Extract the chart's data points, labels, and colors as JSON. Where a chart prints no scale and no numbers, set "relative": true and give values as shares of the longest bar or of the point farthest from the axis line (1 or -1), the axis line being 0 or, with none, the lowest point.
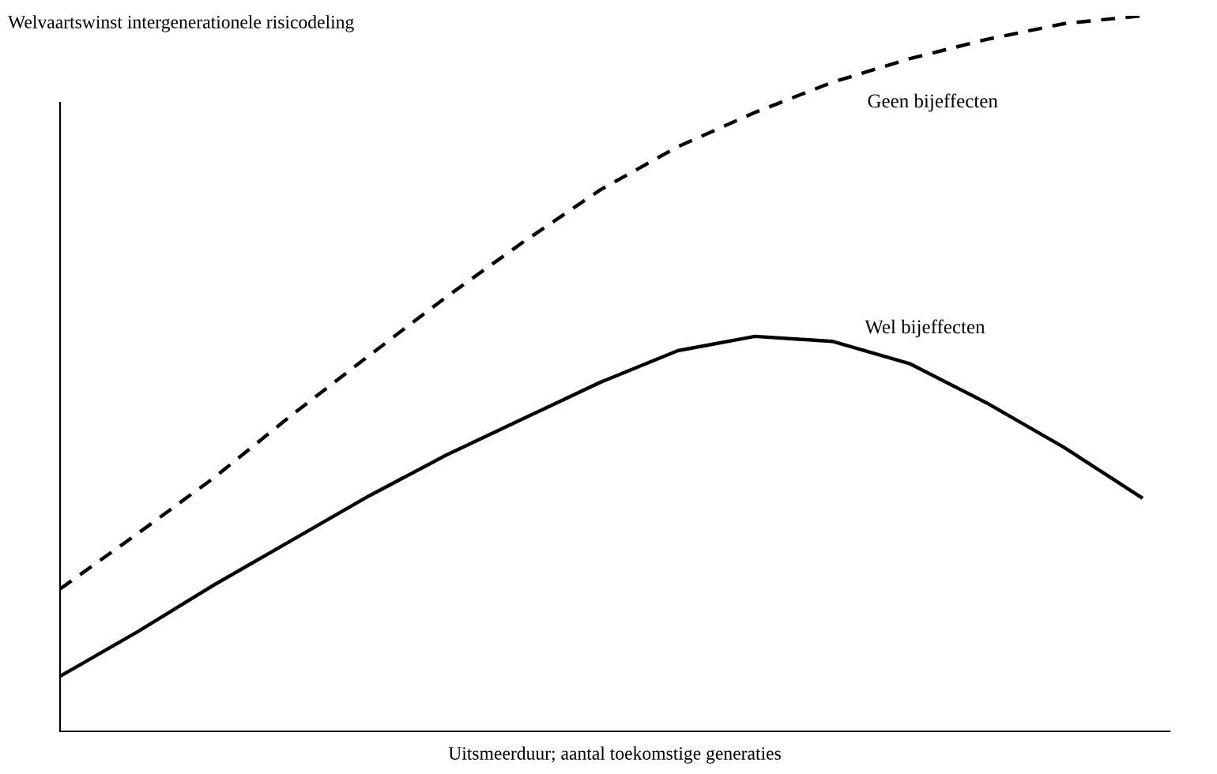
{
  "chart_data": {
    "type": "line",
    "relative": true,
    "title": "Welvaartswinst intergenerationele risicodeling",
    "xlabel": "Uitsmeerduur; aantal toekomstige generaties",
    "categories": [
      null,
      null,
      null,
      null,
      null,
      null,
      null,
      null,
      null,
      null,
      null,
      null,
      null,
      null,
      null
    ],
    "series": [
      {
        "name": "Geen bijeffecten",
        "color": "#000000",
        "line_style": "dashed",
        "values": [
          0.199,
          0.276,
          0.355,
          0.442,
          0.525,
          0.607,
          0.684,
          0.757,
          0.817,
          0.865,
          0.907,
          0.94,
          0.967,
          0.989,
          1.0
        ]
      },
      {
        "name": "Wel bijeffecten",
        "color": "#000000",
        "line_style": "solid",
        "values": [
          0.077,
          0.139,
          0.205,
          0.267,
          0.329,
          0.386,
          0.437,
          0.488,
          0.532,
          0.552,
          0.545,
          0.514,
          0.459,
          0.397,
          0.327
        ]
      }
    ],
    "legend": false,
    "grid": false,
    "marker": "none"
  }
}
